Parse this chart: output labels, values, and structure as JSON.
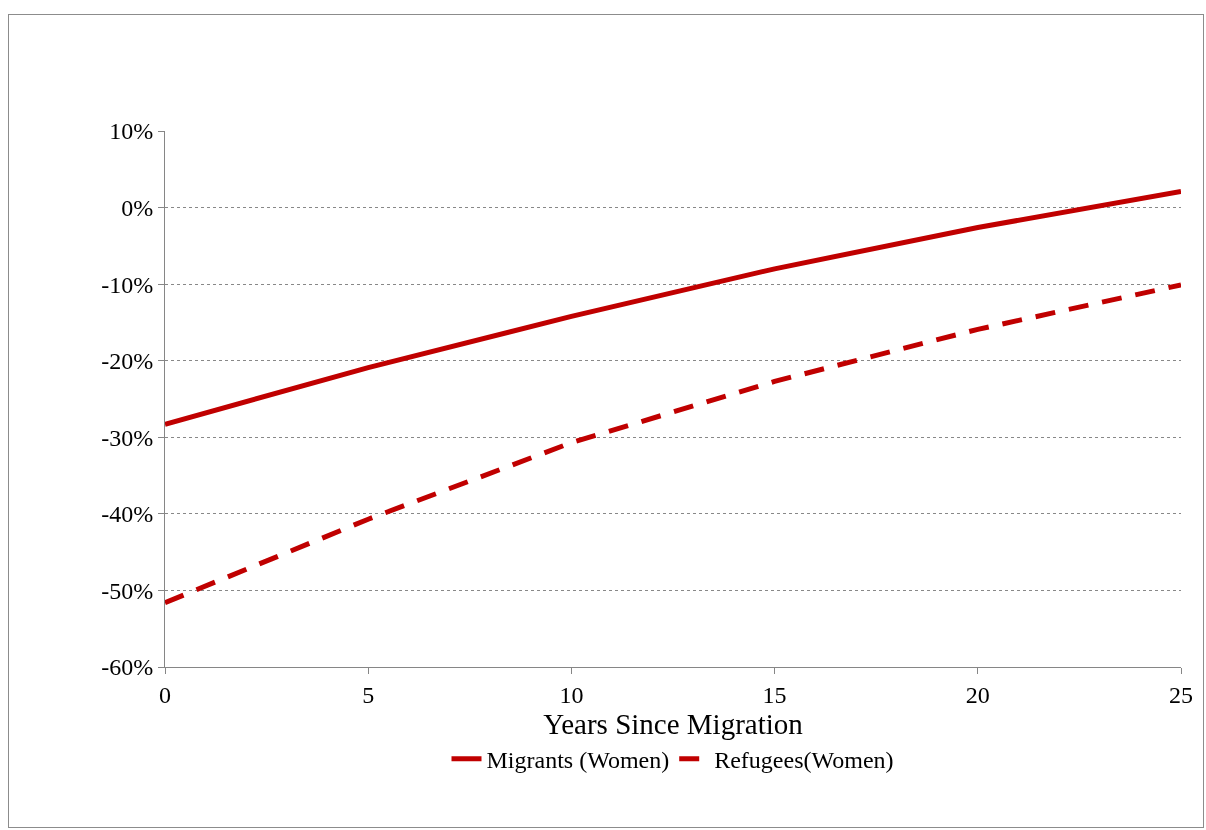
{
  "chart_data": {
    "type": "line",
    "xlabel": "Years Since Migration",
    "x": [
      0,
      5,
      10,
      15,
      20,
      25
    ],
    "series": [
      {
        "name": "Migrants (Women)",
        "color": "#c00000",
        "line_style": "solid",
        "values": [
          -28.3,
          -20.9,
          -14.2,
          -8.0,
          -2.6,
          2.1
        ]
      },
      {
        "name": "Refugees(Women)",
        "color": "#c00000",
        "line_style": "dashed",
        "values": [
          -51.6,
          -40.7,
          -30.7,
          -22.7,
          -15.9,
          -10.1
        ]
      }
    ],
    "xlim": [
      0,
      25
    ],
    "xticks": [
      0,
      5,
      10,
      15,
      20,
      25
    ],
    "ylim": [
      -60,
      10
    ],
    "yticks": [
      {
        "value": -60,
        "label": "-60%"
      },
      {
        "value": -50,
        "label": "-50%"
      },
      {
        "value": -40,
        "label": "-40%"
      },
      {
        "value": -30,
        "label": "-30%"
      },
      {
        "value": -20,
        "label": "-20%"
      },
      {
        "value": -10,
        "label": "-10%"
      },
      {
        "value": 0,
        "label": "0%"
      },
      {
        "value": 10,
        "label": "10%"
      }
    ],
    "grid": "y",
    "legend": "bottom",
    "marker": "none"
  }
}
